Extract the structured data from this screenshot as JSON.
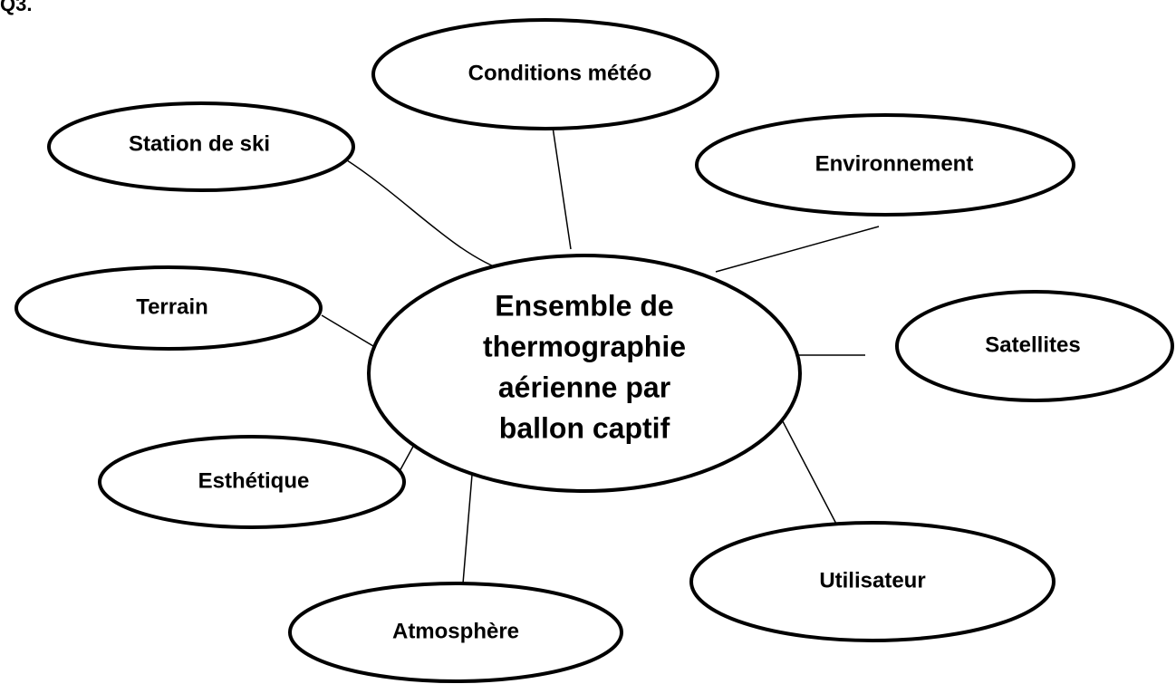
{
  "title": "Q3.",
  "center": {
    "lines": [
      "Ensemble de",
      "thermographie",
      "aérienne par",
      "ballon captif"
    ]
  },
  "nodes": [
    {
      "label": "Conditions météo"
    },
    {
      "label": "Station de ski"
    },
    {
      "label": "Environnement"
    },
    {
      "label": "Terrain"
    },
    {
      "label": "Satellites"
    },
    {
      "label": "Esthétique"
    },
    {
      "label": "Atmosphère"
    },
    {
      "label": "Utilisateur"
    }
  ]
}
